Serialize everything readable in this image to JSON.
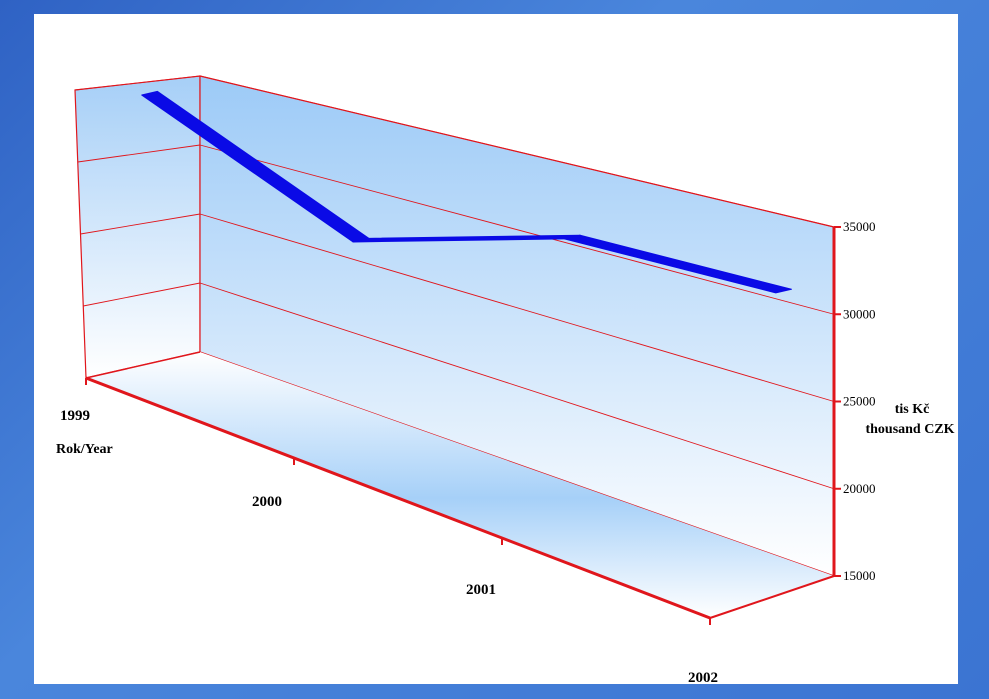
{
  "chart_data": {
    "type": "line",
    "categories": [
      "1999",
      "2000",
      "2001",
      "2002"
    ],
    "values": [
      34600,
      28200,
      32000,
      32000
    ],
    "xlabel": "Rok/Year",
    "ylabel_lines": [
      "tis Kč",
      "thousand CZK"
    ],
    "y_ticks": [
      "15000",
      "20000",
      "25000",
      "30000",
      "35000"
    ],
    "ylim": [
      15000,
      35000
    ],
    "grid": true,
    "colors": {
      "series": "#0a0ae6",
      "axis": "#e0161c",
      "wall_top": "#9ccaf7",
      "wall_bottom": "#ffffff"
    }
  }
}
